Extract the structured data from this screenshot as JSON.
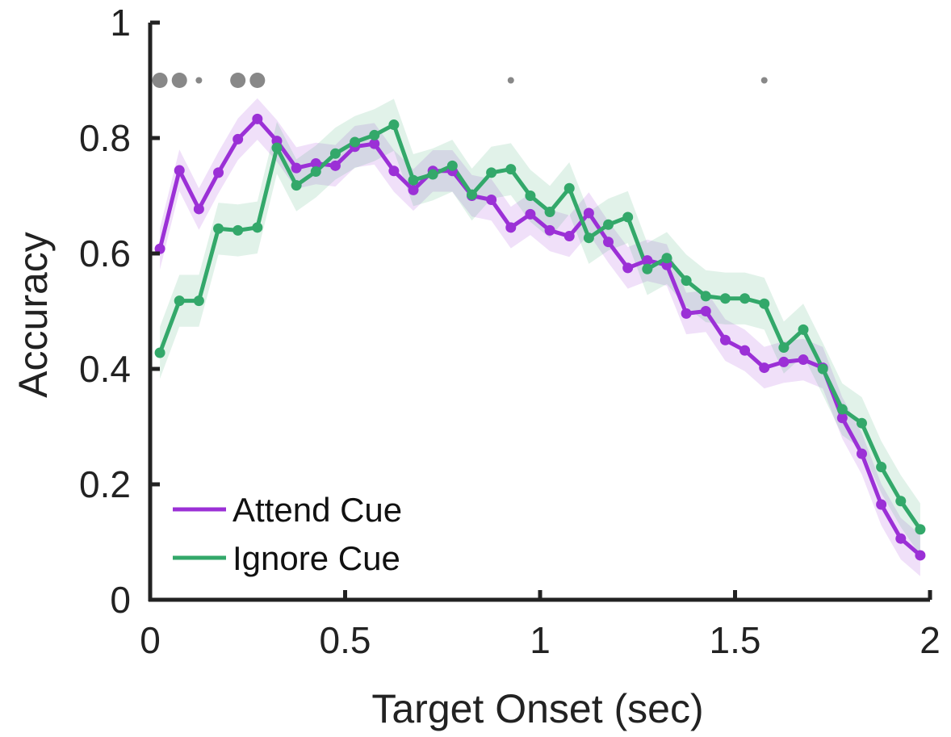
{
  "chart_data": {
    "type": "line",
    "title": "",
    "xlabel": "Target Onset (sec)",
    "ylabel": "Accuracy",
    "xlim": [
      0,
      2
    ],
    "ylim": [
      0,
      1
    ],
    "xticks": [
      0,
      0.5,
      1,
      1.5,
      2
    ],
    "xtick_labels": [
      "0",
      "0.5",
      "1",
      "1.5",
      "2"
    ],
    "yticks": [
      0,
      0.2,
      0.4,
      0.6,
      0.8,
      1
    ],
    "ytick_labels": [
      "0",
      "0.2",
      "0.4",
      "0.6",
      "0.8",
      "1"
    ],
    "grid": false,
    "legend_position": "bottom-left",
    "x": [
      0.025,
      0.075,
      0.125,
      0.175,
      0.225,
      0.275,
      0.325,
      0.375,
      0.425,
      0.475,
      0.525,
      0.575,
      0.625,
      0.675,
      0.725,
      0.775,
      0.825,
      0.875,
      0.925,
      0.975,
      1.025,
      1.075,
      1.125,
      1.175,
      1.225,
      1.275,
      1.325,
      1.375,
      1.425,
      1.475,
      1.525,
      1.575,
      1.625,
      1.675,
      1.725,
      1.775,
      1.825,
      1.875,
      1.925,
      1.975
    ],
    "series": [
      {
        "name": "Attend Cue",
        "color": "#9b30d6",
        "values": [
          0.608,
          0.744,
          0.677,
          0.74,
          0.798,
          0.833,
          0.795,
          0.748,
          0.756,
          0.752,
          0.785,
          0.79,
          0.743,
          0.71,
          0.743,
          0.743,
          0.7,
          0.693,
          0.645,
          0.668,
          0.64,
          0.63,
          0.67,
          0.62,
          0.575,
          0.588,
          0.58,
          0.496,
          0.5,
          0.45,
          0.432,
          0.402,
          0.412,
          0.416,
          0.402,
          0.315,
          0.253,
          0.165,
          0.106,
          0.077
        ],
        "band": [
          0.036,
          0.036,
          0.036,
          0.036,
          0.036,
          0.036,
          0.036,
          0.036,
          0.036,
          0.036,
          0.036,
          0.036,
          0.036,
          0.036,
          0.036,
          0.036,
          0.036,
          0.036,
          0.036,
          0.036,
          0.036,
          0.036,
          0.036,
          0.036,
          0.036,
          0.036,
          0.036,
          0.036,
          0.036,
          0.036,
          0.036,
          0.036,
          0.036,
          0.036,
          0.036,
          0.036,
          0.036,
          0.036,
          0.036,
          0.036
        ]
      },
      {
        "name": "Ignore Cue",
        "color": "#33a86a",
        "values": [
          0.428,
          0.518,
          0.518,
          0.643,
          0.64,
          0.645,
          0.783,
          0.718,
          0.742,
          0.773,
          0.793,
          0.805,
          0.823,
          0.727,
          0.737,
          0.752,
          0.702,
          0.74,
          0.746,
          0.7,
          0.672,
          0.713,
          0.627,
          0.65,
          0.663,
          0.573,
          0.592,
          0.553,
          0.526,
          0.522,
          0.522,
          0.513,
          0.437,
          0.468,
          0.4,
          0.33,
          0.306,
          0.23,
          0.171,
          0.122
        ],
        "band": [
          0.045,
          0.045,
          0.045,
          0.045,
          0.045,
          0.045,
          0.045,
          0.045,
          0.045,
          0.045,
          0.045,
          0.045,
          0.045,
          0.045,
          0.045,
          0.045,
          0.045,
          0.045,
          0.045,
          0.045,
          0.045,
          0.045,
          0.045,
          0.045,
          0.045,
          0.045,
          0.045,
          0.045,
          0.045,
          0.045,
          0.045,
          0.045,
          0.045,
          0.045,
          0.045,
          0.045,
          0.045,
          0.045,
          0.045,
          0.045
        ]
      }
    ],
    "significance_markers": {
      "color": "#888888",
      "y": 0.9,
      "points": [
        {
          "x": 0.025,
          "level": "large"
        },
        {
          "x": 0.075,
          "level": "large"
        },
        {
          "x": 0.125,
          "level": "small"
        },
        {
          "x": 0.225,
          "level": "large"
        },
        {
          "x": 0.275,
          "level": "large"
        },
        {
          "x": 0.925,
          "level": "small"
        },
        {
          "x": 1.575,
          "level": "small"
        }
      ]
    }
  }
}
